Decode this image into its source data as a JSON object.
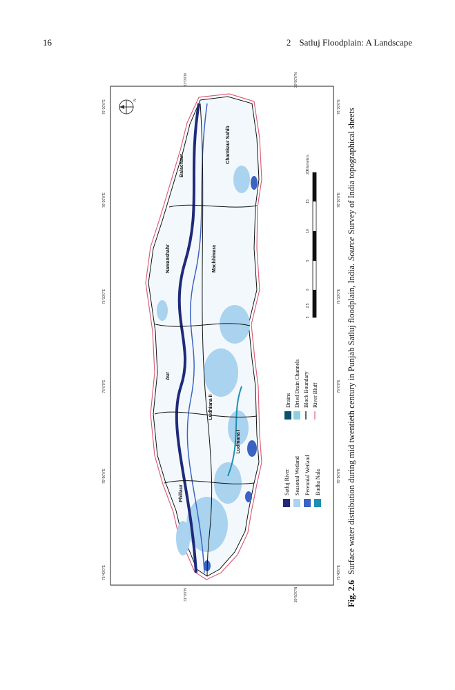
{
  "header": {
    "page_number": "16",
    "chapter": "2",
    "title": "Satluj Floodplain: A Landscape"
  },
  "figure": {
    "north": "N",
    "latitude_labels": [
      "31°0'0\"N",
      "30°50'0\"N"
    ],
    "longitude_labels": [
      "75°40'0\"E",
      "75°50'0\"E",
      "76°0'0\"E",
      "76°10'0\"E",
      "76°20'0\"E",
      "76°30'0\"E"
    ],
    "blocks": [
      "Phillaur",
      "Ludhiana II",
      "Ludhiana I",
      "Aur",
      "Nawanshahr",
      "Machhiwara",
      "Balachaur",
      "Chamkaur Sahib"
    ],
    "legend": [
      {
        "label": "Satluj River",
        "color": "#1f2a7a"
      },
      {
        "label": "Seasonal Wetland",
        "color": "#a9d3ef"
      },
      {
        "label": "Perennial Wetland",
        "color": "#3a63c4"
      },
      {
        "label": "Budha Nala",
        "color": "#1e8fb0"
      },
      {
        "label": "Drains",
        "color": "#0b4f6c"
      },
      {
        "label": "Dried Drain Channels",
        "color": "#8fd0e0"
      },
      {
        "label": "Block Boundary",
        "color": "#000000"
      },
      {
        "label": "River Bluff",
        "color": "#d9607a"
      }
    ],
    "scale": {
      "ticks": [
        "5",
        "2.5",
        "0",
        "5",
        "10",
        "15",
        "20"
      ],
      "unit": "Kilometers"
    }
  },
  "caption": {
    "label": "Fig. 2.6",
    "text": "Surface water distribution during mid twentieth century in Punjab Satluj floodplain, India.",
    "source_label": "Source",
    "source_text": "Survey of India topographical sheets"
  }
}
